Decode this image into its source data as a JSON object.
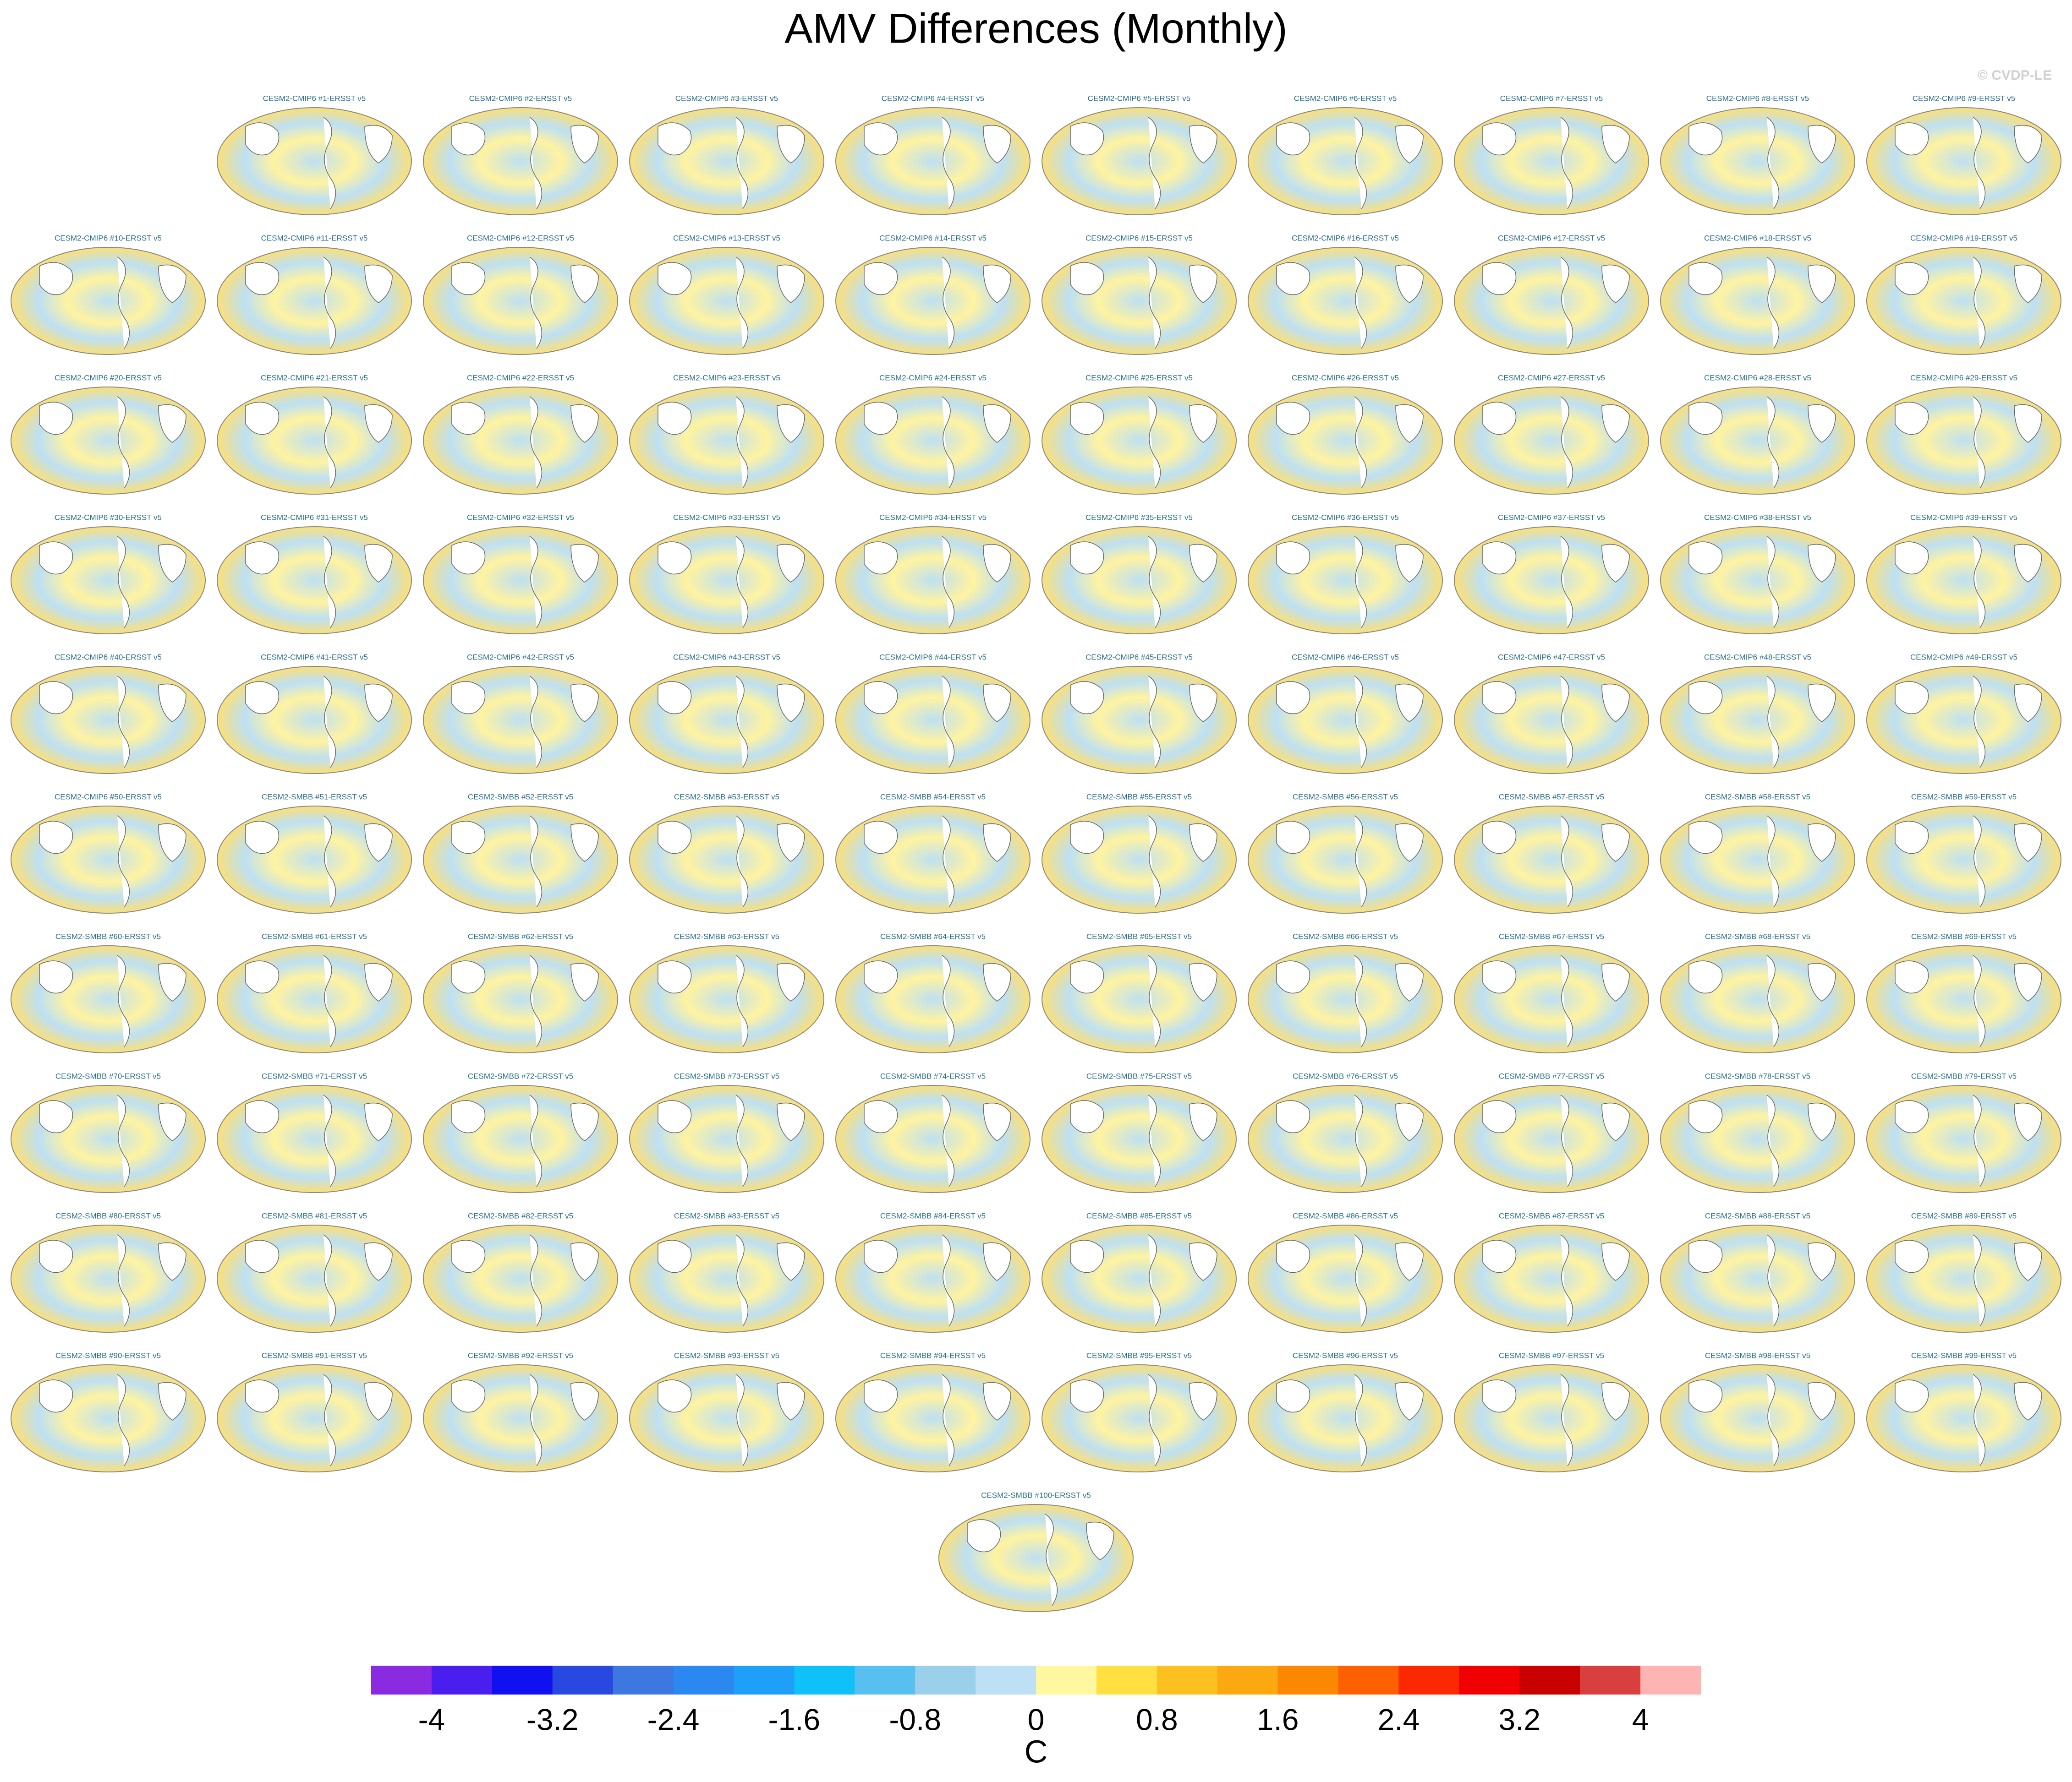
{
  "title": "AMV Differences (Monthly)",
  "watermark": "© CVDP-LE",
  "panels": [
    "CESM2-CMIP6 #1-ERSST v5",
    "CESM2-CMIP6 #2-ERSST v5",
    "CESM2-CMIP6 #3-ERSST v5",
    "CESM2-CMIP6 #4-ERSST v5",
    "CESM2-CMIP6 #5-ERSST v5",
    "CESM2-CMIP6 #6-ERSST v5",
    "CESM2-CMIP6 #7-ERSST v5",
    "CESM2-CMIP6 #8-ERSST v5",
    "CESM2-CMIP6 #9-ERSST v5",
    "CESM2-CMIP6 #10-ERSST v5",
    "CESM2-CMIP6 #11-ERSST v5",
    "CESM2-CMIP6 #12-ERSST v5",
    "CESM2-CMIP6 #13-ERSST v5",
    "CESM2-CMIP6 #14-ERSST v5",
    "CESM2-CMIP6 #15-ERSST v5",
    "CESM2-CMIP6 #16-ERSST v5",
    "CESM2-CMIP6 #17-ERSST v5",
    "CESM2-CMIP6 #18-ERSST v5",
    "CESM2-CMIP6 #19-ERSST v5",
    "CESM2-CMIP6 #20-ERSST v5",
    "CESM2-CMIP6 #21-ERSST v5",
    "CESM2-CMIP6 #22-ERSST v5",
    "CESM2-CMIP6 #23-ERSST v5",
    "CESM2-CMIP6 #24-ERSST v5",
    "CESM2-CMIP6 #25-ERSST v5",
    "CESM2-CMIP6 #26-ERSST v5",
    "CESM2-CMIP6 #27-ERSST v5",
    "CESM2-CMIP6 #28-ERSST v5",
    "CESM2-CMIP6 #29-ERSST v5",
    "CESM2-CMIP6 #30-ERSST v5",
    "CESM2-CMIP6 #31-ERSST v5",
    "CESM2-CMIP6 #32-ERSST v5",
    "CESM2-CMIP6 #33-ERSST v5",
    "CESM2-CMIP6 #34-ERSST v5",
    "CESM2-CMIP6 #35-ERSST v5",
    "CESM2-CMIP6 #36-ERSST v5",
    "CESM2-CMIP6 #37-ERSST v5",
    "CESM2-CMIP6 #38-ERSST v5",
    "CESM2-CMIP6 #39-ERSST v5",
    "CESM2-CMIP6 #40-ERSST v5",
    "CESM2-CMIP6 #41-ERSST v5",
    "CESM2-CMIP6 #42-ERSST v5",
    "CESM2-CMIP6 #43-ERSST v5",
    "CESM2-CMIP6 #44-ERSST v5",
    "CESM2-CMIP6 #45-ERSST v5",
    "CESM2-CMIP6 #46-ERSST v5",
    "CESM2-CMIP6 #47-ERSST v5",
    "CESM2-CMIP6 #48-ERSST v5",
    "CESM2-CMIP6 #49-ERSST v5",
    "CESM2-CMIP6 #50-ERSST v5",
    "CESM2-SMBB #51-ERSST v5",
    "CESM2-SMBB #52-ERSST v5",
    "CESM2-SMBB #53-ERSST v5",
    "CESM2-SMBB #54-ERSST v5",
    "CESM2-SMBB #55-ERSST v5",
    "CESM2-SMBB #56-ERSST v5",
    "CESM2-SMBB #57-ERSST v5",
    "CESM2-SMBB #58-ERSST v5",
    "CESM2-SMBB #59-ERSST v5",
    "CESM2-SMBB #60-ERSST v5",
    "CESM2-SMBB #61-ERSST v5",
    "CESM2-SMBB #62-ERSST v5",
    "CESM2-SMBB #63-ERSST v5",
    "CESM2-SMBB #64-ERSST v5",
    "CESM2-SMBB #65-ERSST v5",
    "CESM2-SMBB #66-ERSST v5",
    "CESM2-SMBB #67-ERSST v5",
    "CESM2-SMBB #68-ERSST v5",
    "CESM2-SMBB #69-ERSST v5",
    "CESM2-SMBB #70-ERSST v5",
    "CESM2-SMBB #71-ERSST v5",
    "CESM2-SMBB #72-ERSST v5",
    "CESM2-SMBB #73-ERSST v5",
    "CESM2-SMBB #74-ERSST v5",
    "CESM2-SMBB #75-ERSST v5",
    "CESM2-SMBB #76-ERSST v5",
    "CESM2-SMBB #77-ERSST v5",
    "CESM2-SMBB #78-ERSST v5",
    "CESM2-SMBB #79-ERSST v5",
    "CESM2-SMBB #80-ERSST v5",
    "CESM2-SMBB #81-ERSST v5",
    "CESM2-SMBB #82-ERSST v5",
    "CESM2-SMBB #83-ERSST v5",
    "CESM2-SMBB #84-ERSST v5",
    "CESM2-SMBB #85-ERSST v5",
    "CESM2-SMBB #86-ERSST v5",
    "CESM2-SMBB #87-ERSST v5",
    "CESM2-SMBB #88-ERSST v5",
    "CESM2-SMBB #89-ERSST v5",
    "CESM2-SMBB #90-ERSST v5",
    "CESM2-SMBB #91-ERSST v5",
    "CESM2-SMBB #92-ERSST v5",
    "CESM2-SMBB #93-ERSST v5",
    "CESM2-SMBB #94-ERSST v5",
    "CESM2-SMBB #95-ERSST v5",
    "CESM2-SMBB #96-ERSST v5",
    "CESM2-SMBB #97-ERSST v5",
    "CESM2-SMBB #98-ERSST v5",
    "CESM2-SMBB #99-ERSST v5",
    "CESM2-SMBB #100-ERSST v5"
  ],
  "colorbar": {
    "levels": [
      -4,
      -3.6,
      -3.2,
      -2.8,
      -2.4,
      -2,
      -1.6,
      -1.2,
      -0.8,
      -0.4,
      0,
      0.4,
      0.8,
      1.2,
      1.6,
      2,
      2.4,
      2.8,
      3.2,
      3.6,
      4
    ],
    "colors": [
      "#8a2be2",
      "#4b1ef0",
      "#1010f0",
      "#2848e0",
      "#3c78e0",
      "#2a88f0",
      "#1ea0f8",
      "#10c0f8",
      "#58c0f0",
      "#9ad0ea",
      "#bde0f4",
      "#fff8a0",
      "#ffe040",
      "#fcc020",
      "#fca810",
      "#fc8800",
      "#fc6000",
      "#fc2800",
      "#f00000",
      "#c80000",
      "#d84040",
      "#ffb4b4"
    ],
    "ticks": [
      -4,
      -3.2,
      -2.4,
      -1.6,
      -0.8,
      0,
      0.8,
      1.6,
      2.4,
      3.2,
      4
    ],
    "label": "C"
  }
}
